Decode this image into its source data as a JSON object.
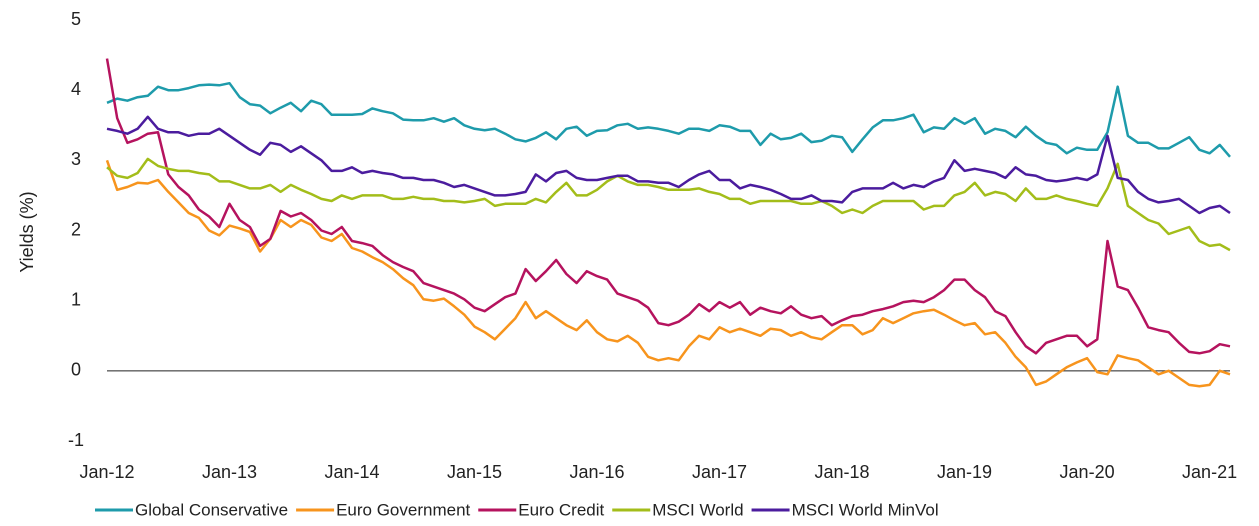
{
  "chart_data": {
    "type": "line",
    "y_label": "Yields (%)",
    "categories": [
      "Jan-12",
      null,
      null,
      null,
      null,
      null,
      null,
      null,
      null,
      null,
      null,
      null,
      "Jan-13",
      null,
      null,
      null,
      null,
      null,
      null,
      null,
      null,
      null,
      null,
      null,
      "Jan-14",
      null,
      null,
      null,
      null,
      null,
      null,
      null,
      null,
      null,
      null,
      null,
      "Jan-15",
      null,
      null,
      null,
      null,
      null,
      null,
      null,
      null,
      null,
      null,
      null,
      "Jan-16",
      null,
      null,
      null,
      null,
      null,
      null,
      null,
      null,
      null,
      null,
      null,
      "Jan-17",
      null,
      null,
      null,
      null,
      null,
      null,
      null,
      null,
      null,
      null,
      null,
      "Jan-18",
      null,
      null,
      null,
      null,
      null,
      null,
      null,
      null,
      null,
      null,
      null,
      "Jan-19",
      null,
      null,
      null,
      null,
      null,
      null,
      null,
      null,
      null,
      null,
      null,
      "Jan-20",
      null,
      null,
      null,
      null,
      null,
      null,
      null,
      null,
      null,
      null,
      null,
      "Jan-21",
      null,
      null
    ],
    "ylim": [
      -1,
      5
    ],
    "yticks": [
      -1,
      0,
      1,
      2,
      3,
      4,
      5
    ],
    "grid": false,
    "series": [
      {
        "name": "Global Conservative",
        "color": "#1e9bab",
        "values": [
          3.82,
          3.88,
          3.85,
          3.9,
          3.92,
          4.05,
          4.0,
          4.0,
          4.03,
          4.07,
          4.08,
          4.07,
          4.1,
          3.9,
          3.8,
          3.78,
          3.67,
          3.75,
          3.82,
          3.7,
          3.85,
          3.8,
          3.65,
          3.65,
          3.65,
          3.66,
          3.74,
          3.7,
          3.67,
          3.58,
          3.57,
          3.57,
          3.6,
          3.55,
          3.6,
          3.5,
          3.45,
          3.43,
          3.45,
          3.38,
          3.3,
          3.27,
          3.32,
          3.4,
          3.3,
          3.45,
          3.48,
          3.35,
          3.42,
          3.43,
          3.5,
          3.52,
          3.45,
          3.47,
          3.45,
          3.42,
          3.38,
          3.45,
          3.45,
          3.42,
          3.5,
          3.48,
          3.42,
          3.42,
          3.22,
          3.38,
          3.3,
          3.32,
          3.38,
          3.26,
          3.28,
          3.35,
          3.33,
          3.12,
          3.3,
          3.47,
          3.57,
          3.57,
          3.6,
          3.65,
          3.4,
          3.47,
          3.45,
          3.6,
          3.52,
          3.6,
          3.38,
          3.45,
          3.42,
          3.33,
          3.48,
          3.35,
          3.25,
          3.22,
          3.1,
          3.18,
          3.15,
          3.15,
          3.4,
          4.05,
          3.35,
          3.25,
          3.25,
          3.17,
          3.17,
          3.25,
          3.33,
          3.15,
          3.1,
          3.22,
          3.05
        ]
      },
      {
        "name": "Euro Government",
        "color": "#f7941d",
        "values": [
          3.0,
          2.58,
          2.62,
          2.68,
          2.67,
          2.72,
          2.55,
          2.4,
          2.25,
          2.18,
          2.0,
          1.93,
          2.07,
          2.03,
          1.98,
          1.7,
          1.88,
          2.15,
          2.05,
          2.15,
          2.08,
          1.9,
          1.85,
          1.95,
          1.75,
          1.7,
          1.62,
          1.55,
          1.45,
          1.32,
          1.22,
          1.02,
          1.0,
          1.03,
          0.92,
          0.8,
          0.63,
          0.55,
          0.45,
          0.6,
          0.75,
          0.98,
          0.75,
          0.85,
          0.75,
          0.65,
          0.58,
          0.72,
          0.55,
          0.45,
          0.42,
          0.5,
          0.4,
          0.2,
          0.15,
          0.18,
          0.15,
          0.35,
          0.5,
          0.45,
          0.62,
          0.55,
          0.6,
          0.55,
          0.5,
          0.6,
          0.58,
          0.5,
          0.55,
          0.48,
          0.45,
          0.55,
          0.65,
          0.65,
          0.52,
          0.58,
          0.75,
          0.68,
          0.75,
          0.82,
          0.85,
          0.87,
          0.8,
          0.72,
          0.65,
          0.68,
          0.52,
          0.55,
          0.4,
          0.2,
          0.05,
          -0.2,
          -0.15,
          -0.05,
          0.05,
          0.12,
          0.18,
          -0.02,
          -0.05,
          0.22,
          0.18,
          0.15,
          0.05,
          -0.05,
          0.0,
          -0.1,
          -0.2,
          -0.22,
          -0.2,
          0.0,
          -0.05
        ]
      },
      {
        "name": "Euro Credit",
        "color": "#b5135e",
        "values": [
          4.45,
          3.6,
          3.25,
          3.3,
          3.38,
          3.4,
          2.8,
          2.62,
          2.5,
          2.3,
          2.2,
          2.05,
          2.38,
          2.15,
          2.05,
          1.78,
          1.88,
          2.28,
          2.2,
          2.25,
          2.15,
          2.0,
          1.95,
          2.05,
          1.85,
          1.82,
          1.78,
          1.65,
          1.55,
          1.48,
          1.42,
          1.25,
          1.2,
          1.15,
          1.1,
          1.02,
          0.9,
          0.85,
          0.95,
          1.05,
          1.1,
          1.45,
          1.28,
          1.42,
          1.58,
          1.38,
          1.25,
          1.42,
          1.35,
          1.3,
          1.1,
          1.05,
          1.0,
          0.9,
          0.68,
          0.65,
          0.7,
          0.8,
          0.95,
          0.85,
          0.98,
          0.9,
          0.98,
          0.8,
          0.9,
          0.85,
          0.82,
          0.92,
          0.8,
          0.75,
          0.78,
          0.65,
          0.72,
          0.78,
          0.8,
          0.85,
          0.88,
          0.92,
          0.98,
          1.0,
          0.98,
          1.05,
          1.15,
          1.3,
          1.3,
          1.15,
          1.05,
          0.85,
          0.78,
          0.55,
          0.35,
          0.25,
          0.4,
          0.45,
          0.5,
          0.5,
          0.35,
          0.45,
          1.85,
          1.2,
          1.15,
          0.9,
          0.62,
          0.58,
          0.55,
          0.4,
          0.27,
          0.25,
          0.28,
          0.38,
          0.35
        ]
      },
      {
        "name": "MSCI World",
        "color": "#a3bd1a",
        "values": [
          2.9,
          2.78,
          2.75,
          2.82,
          3.02,
          2.92,
          2.88,
          2.85,
          2.85,
          2.82,
          2.8,
          2.7,
          2.7,
          2.65,
          2.6,
          2.6,
          2.65,
          2.55,
          2.65,
          2.58,
          2.52,
          2.45,
          2.42,
          2.5,
          2.45,
          2.5,
          2.5,
          2.5,
          2.45,
          2.45,
          2.48,
          2.45,
          2.45,
          2.42,
          2.42,
          2.4,
          2.42,
          2.45,
          2.35,
          2.38,
          2.38,
          2.38,
          2.45,
          2.4,
          2.55,
          2.68,
          2.5,
          2.5,
          2.58,
          2.7,
          2.78,
          2.7,
          2.65,
          2.65,
          2.62,
          2.58,
          2.58,
          2.58,
          2.6,
          2.55,
          2.52,
          2.45,
          2.45,
          2.38,
          2.42,
          2.42,
          2.42,
          2.42,
          2.38,
          2.38,
          2.42,
          2.35,
          2.25,
          2.3,
          2.25,
          2.35,
          2.42,
          2.42,
          2.42,
          2.42,
          2.3,
          2.35,
          2.35,
          2.5,
          2.55,
          2.68,
          2.5,
          2.55,
          2.52,
          2.42,
          2.6,
          2.45,
          2.45,
          2.5,
          2.45,
          2.42,
          2.38,
          2.35,
          2.6,
          2.95,
          2.35,
          2.25,
          2.15,
          2.1,
          1.95,
          2.0,
          2.05,
          1.85,
          1.78,
          1.8,
          1.72
        ]
      },
      {
        "name": "MSCI World MinVol",
        "color": "#4b1c9e",
        "values": [
          3.45,
          3.42,
          3.38,
          3.45,
          3.62,
          3.45,
          3.4,
          3.4,
          3.35,
          3.38,
          3.38,
          3.45,
          3.35,
          3.25,
          3.15,
          3.08,
          3.25,
          3.22,
          3.12,
          3.2,
          3.1,
          3.0,
          2.85,
          2.85,
          2.9,
          2.82,
          2.85,
          2.82,
          2.8,
          2.75,
          2.75,
          2.72,
          2.72,
          2.68,
          2.62,
          2.65,
          2.6,
          2.55,
          2.5,
          2.5,
          2.52,
          2.55,
          2.8,
          2.7,
          2.82,
          2.85,
          2.75,
          2.72,
          2.72,
          2.75,
          2.78,
          2.78,
          2.7,
          2.7,
          2.68,
          2.68,
          2.62,
          2.72,
          2.8,
          2.85,
          2.72,
          2.72,
          2.6,
          2.65,
          2.62,
          2.58,
          2.52,
          2.45,
          2.45,
          2.5,
          2.42,
          2.42,
          2.4,
          2.55,
          2.6,
          2.6,
          2.6,
          2.68,
          2.6,
          2.65,
          2.62,
          2.7,
          2.75,
          3.0,
          2.85,
          2.88,
          2.85,
          2.82,
          2.75,
          2.9,
          2.8,
          2.78,
          2.72,
          2.7,
          2.72,
          2.75,
          2.72,
          2.8,
          3.35,
          2.75,
          2.72,
          2.55,
          2.45,
          2.4,
          2.42,
          2.45,
          2.35,
          2.25,
          2.32,
          2.35,
          2.25
        ]
      }
    ]
  }
}
